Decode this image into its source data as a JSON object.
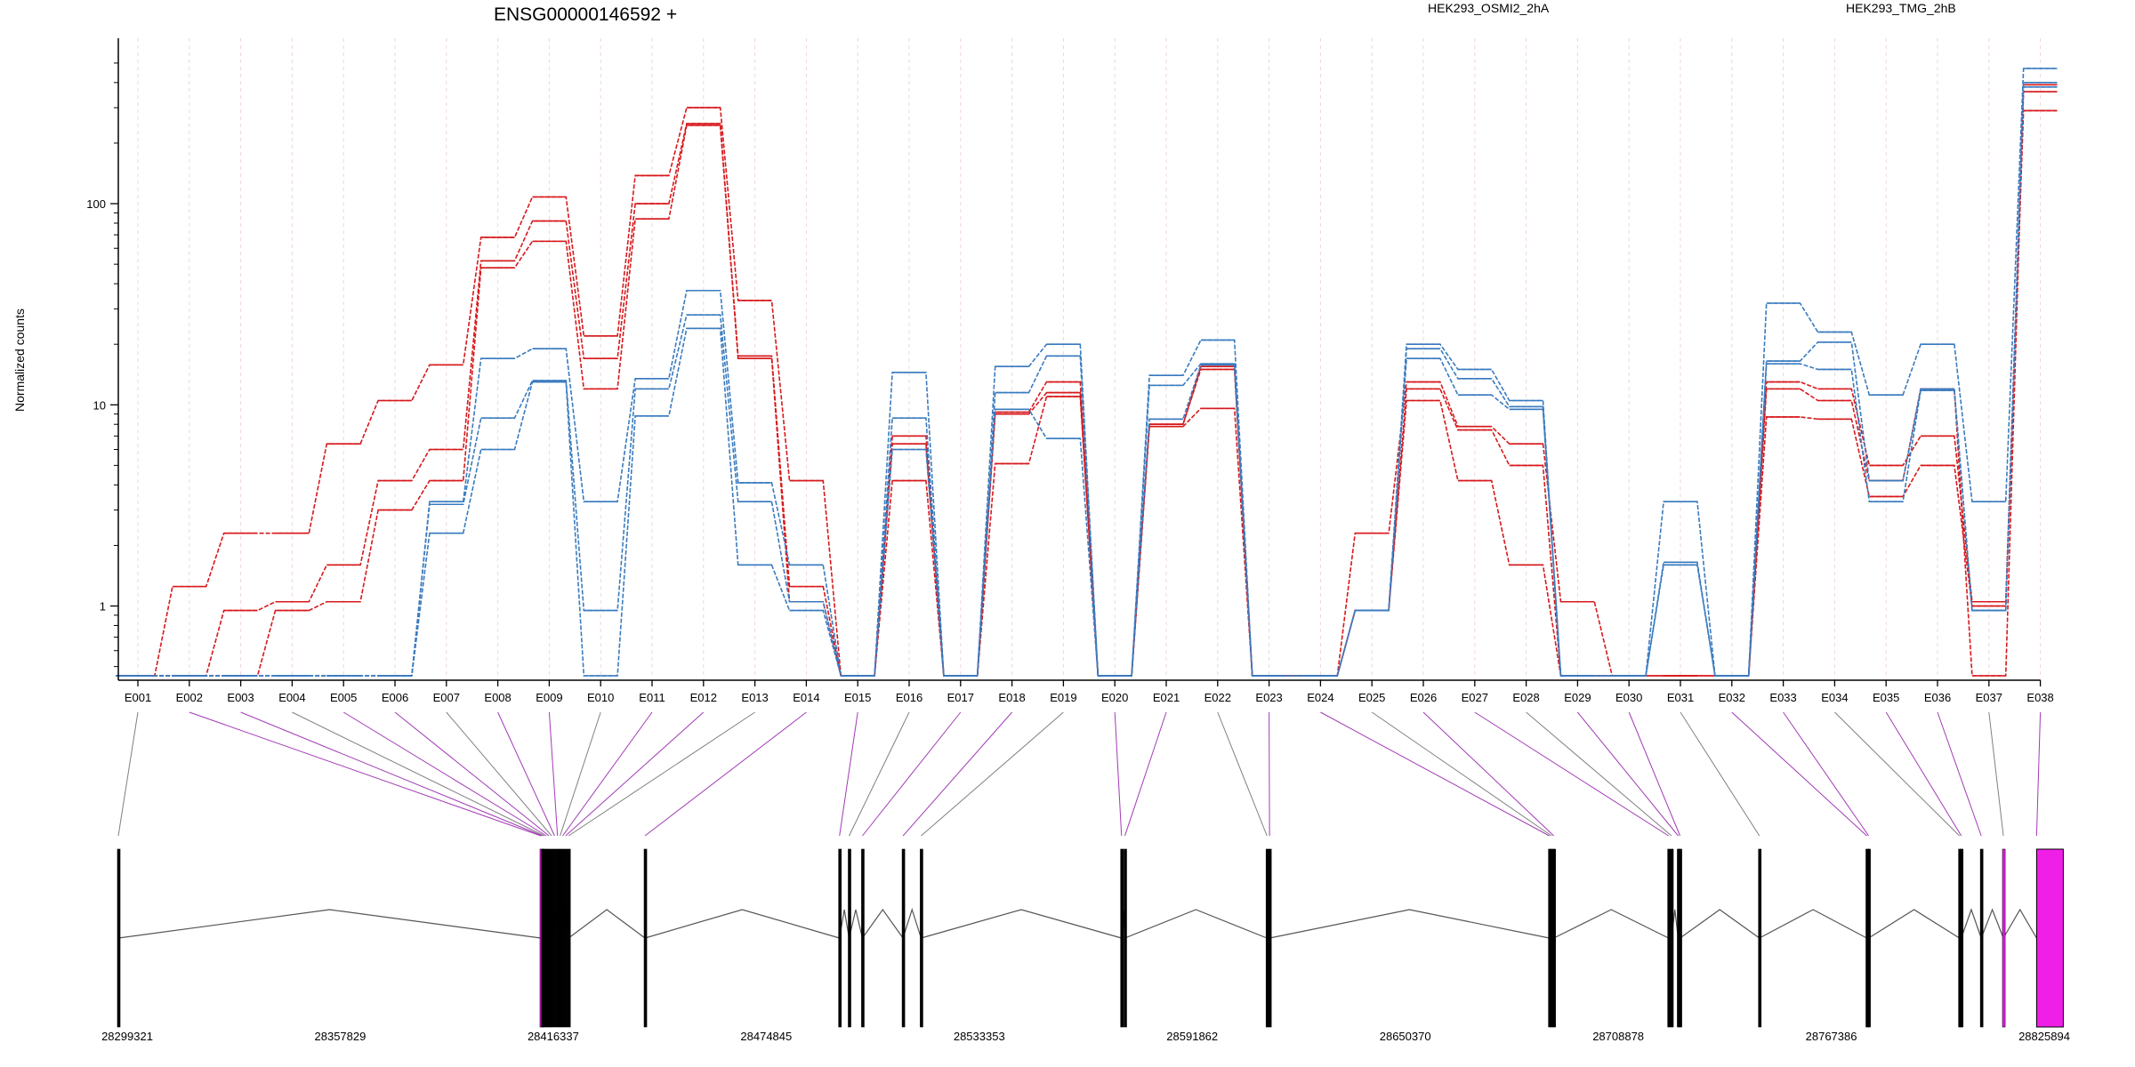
{
  "chart_data": {
    "type": "line",
    "title": "ENSG00000146592 +",
    "ylabel": "Normalized counts",
    "yscale": "log",
    "ylim": [
      0.45,
      600
    ],
    "yticks": [
      "1",
      "10",
      "100"
    ],
    "legend": [
      {
        "name": "HEK293_OSMI2_2hA",
        "color": "#d7191c"
      },
      {
        "name": "HEK293_TMG_2hB",
        "color": "#3a7bbf"
      }
    ],
    "categories": [
      "E001",
      "E002",
      "E003",
      "E004",
      "E005",
      "E006",
      "E007",
      "E008",
      "E009",
      "E010",
      "E011",
      "E012",
      "E013",
      "E014",
      "E015",
      "E016",
      "E017",
      "E018",
      "E019",
      "E020",
      "E021",
      "E022",
      "E023",
      "E024",
      "E025",
      "E026",
      "E027",
      "E028",
      "E029",
      "E030",
      "E031",
      "E032",
      "E033",
      "E034",
      "E035",
      "E036",
      "E037",
      "E038"
    ],
    "series": [
      {
        "group": "HEK293_OSMI2_2hA",
        "color": "#d7191c",
        "values": [
          0.45,
          1.25,
          2.3,
          2.3,
          6.4,
          10.5,
          15.8,
          68,
          108,
          22,
          138,
          300,
          33,
          4.2,
          0.45,
          7,
          0.45,
          9.2,
          13,
          0.45,
          8,
          15.5,
          0.45,
          0.45,
          2.3,
          13,
          7.8,
          6.4,
          1.05,
          0.45,
          0.45,
          0.45,
          13,
          12,
          5,
          7,
          1.05,
          390
        ]
      },
      {
        "group": "HEK293_OSMI2_2hA",
        "color": "#d7191c",
        "values": [
          0.45,
          0.45,
          0.95,
          1.05,
          1.6,
          4.2,
          6,
          52,
          82,
          17,
          100,
          250,
          17.5,
          1.25,
          0.45,
          6.4,
          0.45,
          9,
          11.5,
          0.45,
          8,
          15,
          0.45,
          0.45,
          0.95,
          12,
          7.5,
          5,
          0.45,
          0.45,
          0.45,
          0.45,
          12,
          10.5,
          4.2,
          12,
          0.45,
          360
        ]
      },
      {
        "group": "HEK293_OSMI2_2hA",
        "color": "#d7191c",
        "values": [
          0.45,
          0.45,
          0.45,
          0.95,
          1.05,
          3,
          4.2,
          48,
          65,
          12,
          84,
          245,
          17,
          1.05,
          0.45,
          4.2,
          0.45,
          5.1,
          11,
          0.45,
          7.8,
          9.6,
          0.45,
          0.45,
          0.95,
          10.5,
          4.2,
          1.6,
          0.45,
          0.45,
          0.45,
          0.45,
          8.7,
          8.5,
          3.5,
          5,
          1,
          290
        ]
      },
      {
        "group": "HEK293_TMG_2hB",
        "color": "#3a7bbf",
        "values": [
          0.45,
          0.45,
          0.45,
          0.45,
          0.45,
          0.45,
          3.3,
          17,
          19,
          3.3,
          13.5,
          37,
          4.1,
          1.6,
          0.45,
          14.5,
          0.45,
          15.5,
          20,
          0.45,
          14,
          21,
          0.45,
          0.45,
          0.95,
          20,
          15,
          10.5,
          0.45,
          0.45,
          3.3,
          0.45,
          32,
          23,
          11.2,
          20,
          3.3,
          470
        ]
      },
      {
        "group": "HEK293_TMG_2hB",
        "color": "#3a7bbf",
        "values": [
          0.45,
          0.45,
          0.45,
          0.45,
          0.45,
          0.45,
          3.2,
          8.6,
          13.2,
          0.95,
          12,
          28,
          3.3,
          1.05,
          0.45,
          8.6,
          0.45,
          11.5,
          17.5,
          0.45,
          12.5,
          16,
          0.45,
          0.45,
          0.95,
          19,
          13.5,
          9.8,
          0.45,
          0.45,
          1.65,
          0.45,
          16.5,
          20.5,
          4.2,
          12,
          0.95,
          400
        ]
      },
      {
        "group": "HEK293_TMG_2hB",
        "color": "#3a7bbf",
        "values": [
          0.45,
          0.45,
          0.45,
          0.45,
          0.45,
          0.45,
          2.3,
          6,
          13,
          0.45,
          8.8,
          24,
          1.6,
          0.95,
          0.45,
          6,
          0.45,
          9.5,
          6.8,
          0.45,
          8.5,
          15.8,
          0.45,
          0.45,
          0.95,
          17,
          11.2,
          9.5,
          0.45,
          0.45,
          1.6,
          0.45,
          16,
          15,
          3.3,
          11.8,
          0.95,
          380
        ]
      }
    ],
    "genomic_axis": {
      "tick_labels": [
        "28299321",
        "28357829",
        "28416337",
        "28474845",
        "28533353",
        "28591862",
        "28650370",
        "28708878",
        "28767386",
        "28825894"
      ],
      "range": [
        28299321,
        28825894
      ]
    },
    "colors": {
      "highlight": "#ef1fe8",
      "purple_link": "#a23bb5",
      "grey_link": "#808080"
    }
  }
}
